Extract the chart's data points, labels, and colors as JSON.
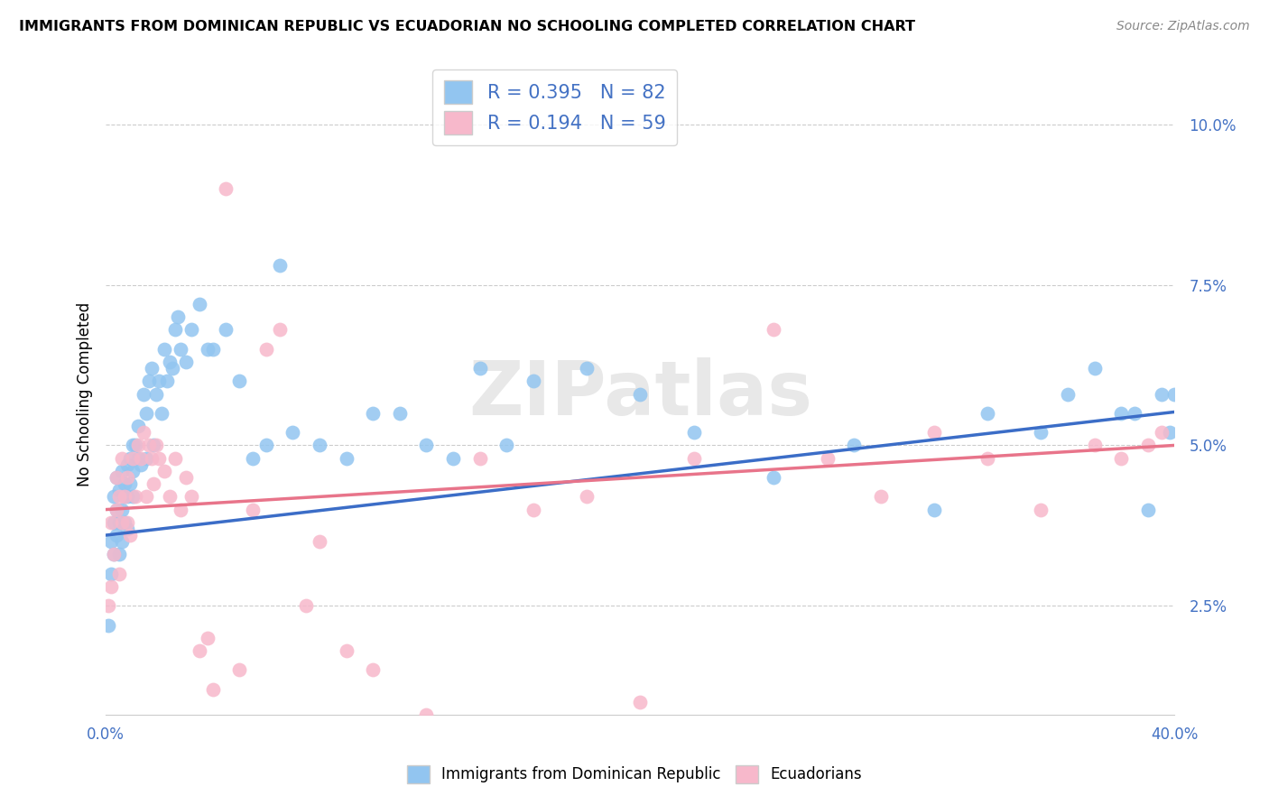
{
  "title": "IMMIGRANTS FROM DOMINICAN REPUBLIC VS ECUADORIAN NO SCHOOLING COMPLETED CORRELATION CHART",
  "source": "Source: ZipAtlas.com",
  "ylabel": "No Schooling Completed",
  "ytick_vals": [
    0.025,
    0.05,
    0.075,
    0.1
  ],
  "ytick_labels": [
    "2.5%",
    "5.0%",
    "7.5%",
    "10.0%"
  ],
  "xlim": [
    0.0,
    0.4
  ],
  "ylim": [
    0.008,
    0.108
  ],
  "blue_color": "#92C5F0",
  "pink_color": "#F7B8CB",
  "blue_line_color": "#3B6DC7",
  "pink_line_color": "#E8748A",
  "blue_R": 0.395,
  "blue_N": 82,
  "pink_R": 0.194,
  "pink_N": 59,
  "legend_label_blue": "Immigrants from Dominican Republic",
  "legend_label_pink": "Ecuadorians",
  "watermark": "ZIPatlas",
  "tick_color": "#4472C4",
  "grid_color": "#CCCCCC",
  "blue_intercept": 0.036,
  "blue_slope": 0.048,
  "pink_intercept": 0.04,
  "pink_slope": 0.025,
  "blue_x": [
    0.001,
    0.002,
    0.002,
    0.003,
    0.003,
    0.003,
    0.004,
    0.004,
    0.004,
    0.005,
    0.005,
    0.005,
    0.006,
    0.006,
    0.006,
    0.007,
    0.007,
    0.007,
    0.008,
    0.008,
    0.008,
    0.009,
    0.009,
    0.01,
    0.01,
    0.01,
    0.011,
    0.012,
    0.012,
    0.013,
    0.014,
    0.015,
    0.015,
    0.016,
    0.017,
    0.018,
    0.019,
    0.02,
    0.021,
    0.022,
    0.023,
    0.024,
    0.025,
    0.026,
    0.027,
    0.028,
    0.03,
    0.032,
    0.035,
    0.038,
    0.04,
    0.045,
    0.05,
    0.055,
    0.06,
    0.065,
    0.07,
    0.08,
    0.09,
    0.1,
    0.11,
    0.12,
    0.13,
    0.14,
    0.15,
    0.16,
    0.18,
    0.2,
    0.22,
    0.25,
    0.28,
    0.31,
    0.33,
    0.35,
    0.36,
    0.37,
    0.38,
    0.385,
    0.39,
    0.395,
    0.398,
    0.4
  ],
  "blue_y": [
    0.022,
    0.035,
    0.03,
    0.038,
    0.042,
    0.033,
    0.04,
    0.036,
    0.045,
    0.038,
    0.043,
    0.033,
    0.04,
    0.046,
    0.035,
    0.044,
    0.042,
    0.038,
    0.047,
    0.042,
    0.037,
    0.048,
    0.044,
    0.05,
    0.046,
    0.042,
    0.05,
    0.048,
    0.053,
    0.047,
    0.058,
    0.055,
    0.048,
    0.06,
    0.062,
    0.05,
    0.058,
    0.06,
    0.055,
    0.065,
    0.06,
    0.063,
    0.062,
    0.068,
    0.07,
    0.065,
    0.063,
    0.068,
    0.072,
    0.065,
    0.065,
    0.068,
    0.06,
    0.048,
    0.05,
    0.078,
    0.052,
    0.05,
    0.048,
    0.055,
    0.055,
    0.05,
    0.048,
    0.062,
    0.05,
    0.06,
    0.062,
    0.058,
    0.052,
    0.045,
    0.05,
    0.04,
    0.055,
    0.052,
    0.058,
    0.062,
    0.055,
    0.055,
    0.04,
    0.058,
    0.052,
    0.058
  ],
  "pink_x": [
    0.001,
    0.002,
    0.002,
    0.003,
    0.004,
    0.004,
    0.005,
    0.005,
    0.006,
    0.006,
    0.007,
    0.008,
    0.008,
    0.009,
    0.01,
    0.011,
    0.012,
    0.013,
    0.014,
    0.015,
    0.016,
    0.017,
    0.018,
    0.019,
    0.02,
    0.022,
    0.024,
    0.026,
    0.028,
    0.03,
    0.032,
    0.035,
    0.038,
    0.04,
    0.045,
    0.05,
    0.055,
    0.06,
    0.065,
    0.075,
    0.08,
    0.09,
    0.1,
    0.12,
    0.14,
    0.16,
    0.18,
    0.2,
    0.22,
    0.25,
    0.27,
    0.29,
    0.31,
    0.33,
    0.35,
    0.37,
    0.38,
    0.39,
    0.395
  ],
  "pink_y": [
    0.025,
    0.028,
    0.038,
    0.033,
    0.04,
    0.045,
    0.03,
    0.042,
    0.038,
    0.048,
    0.042,
    0.038,
    0.045,
    0.036,
    0.048,
    0.042,
    0.05,
    0.048,
    0.052,
    0.042,
    0.05,
    0.048,
    0.044,
    0.05,
    0.048,
    0.046,
    0.042,
    0.048,
    0.04,
    0.045,
    0.042,
    0.018,
    0.02,
    0.012,
    0.09,
    0.015,
    0.04,
    0.065,
    0.068,
    0.025,
    0.035,
    0.018,
    0.015,
    0.008,
    0.048,
    0.04,
    0.042,
    0.01,
    0.048,
    0.068,
    0.048,
    0.042,
    0.052,
    0.048,
    0.04,
    0.05,
    0.048,
    0.05,
    0.052
  ]
}
